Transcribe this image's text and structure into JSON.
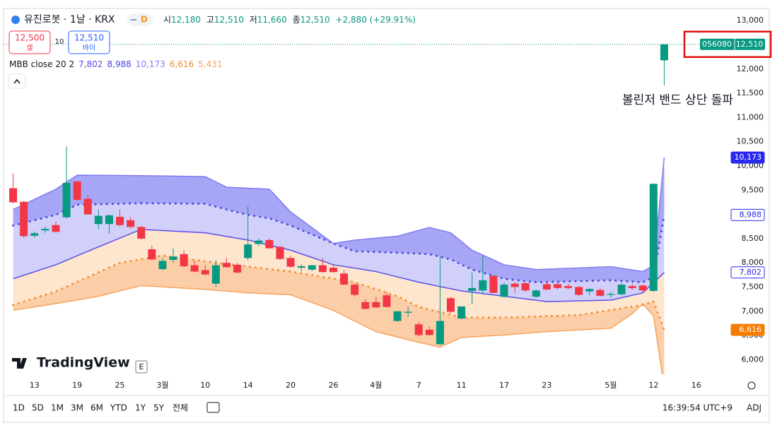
{
  "header": {
    "symbol": "유진로봇 · 1날 · KRX",
    "badge": "D",
    "ohlc": [
      {
        "label": "시",
        "value": "12,180"
      },
      {
        "label": "고",
        "value": "12,510"
      },
      {
        "label": "저",
        "value": "11,660"
      },
      {
        "label": "종",
        "value": "12,510"
      }
    ],
    "change": "+2,880 (+29.91%)"
  },
  "trade": {
    "sell_price": "12,500",
    "sell": "셀",
    "spread": "10",
    "buy_price": "12,510",
    "buy": "바이"
  },
  "chart_data": {
    "type": "candlestick",
    "indicator": "MBB close 20 2",
    "annotation": "볼린저 밴드 상단 돌파",
    "last_price": {
      "symbol": "056080",
      "label": "12,510"
    },
    "up_color": "#089981",
    "down_color": "#f23645",
    "open": [
      9540,
      9260,
      8560,
      8670,
      8780,
      8940,
      9680,
      9320,
      8800,
      8800,
      8950,
      8880,
      8740,
      8280,
      7870,
      8060,
      8180,
      7950,
      7850,
      7570,
      8000,
      7960,
      8100,
      8390,
      8470,
      8330,
      8100,
      7900,
      7860,
      7950,
      7900,
      7780,
      7550,
      7190,
      7190,
      7330,
      6800,
      6970,
      6730,
      6620,
      6320,
      7270,
      6850,
      7420,
      7430,
      7730,
      7300,
      7570,
      7580,
      7300,
      7560,
      7560,
      7520,
      7500,
      7410,
      7440,
      7340,
      7350,
      7520,
      7530,
      7420,
      12180
    ],
    "high": [
      9850,
      9280,
      8650,
      8750,
      8850,
      10400,
      9700,
      9400,
      9100,
      9000,
      9100,
      8950,
      8760,
      8350,
      8100,
      8300,
      8250,
      8050,
      7950,
      8050,
      8100,
      8000,
      9170,
      8500,
      8500,
      8350,
      8150,
      7980,
      7950,
      8100,
      7950,
      7850,
      7580,
      7250,
      7300,
      7400,
      7000,
      7100,
      6780,
      6680,
      8150,
      7300,
      7100,
      7800,
      8150,
      7750,
      7600,
      7600,
      7600,
      7450,
      7600,
      7620,
      7570,
      7520,
      7480,
      7480,
      7400,
      7580,
      7560,
      7560,
      9640,
      12510
    ],
    "low": [
      9230,
      8520,
      8520,
      8620,
      8620,
      8920,
      9280,
      8990,
      8700,
      8600,
      8750,
      8710,
      8480,
      8050,
      7850,
      8000,
      7900,
      7800,
      7740,
      7500,
      7900,
      7780,
      8050,
      8350,
      8300,
      8060,
      7900,
      7820,
      7830,
      7800,
      7800,
      7540,
      7300,
      7040,
      7060,
      7070,
      6780,
      6880,
      6480,
      6500,
      6300,
      6960,
      6830,
      7150,
      7350,
      7380,
      7280,
      7380,
      7400,
      7280,
      7430,
      7450,
      7450,
      7320,
      7330,
      7300,
      7280,
      7330,
      7440,
      7400,
      7400,
      11660
    ],
    "close": [
      9250,
      8550,
      8610,
      8700,
      8640,
      9650,
      9300,
      9000,
      8970,
      8980,
      8780,
      8740,
      8500,
      8070,
      8040,
      8130,
      7930,
      7820,
      7760,
      7950,
      7910,
      7800,
      8380,
      8460,
      8300,
      8080,
      7920,
      7930,
      7950,
      7810,
      7810,
      7550,
      7340,
      7050,
      7080,
      7090,
      7000,
      6990,
      6510,
      6510,
      6800,
      6990,
      7100,
      7480,
      7640,
      7380,
      7550,
      7500,
      7430,
      7430,
      7450,
      7480,
      7480,
      7340,
      7460,
      7320,
      7360,
      7550,
      7480,
      7430,
      9630,
      12510
    ],
    "bands": [
      {
        "color": "#5b4ee8",
        "style": "solid",
        "value_label": "7,802",
        "x": [
          0,
          4,
          8,
          12,
          18,
          22,
          26,
          30,
          34,
          38,
          42,
          46,
          50,
          56,
          59,
          61
        ],
        "values": [
          7670,
          7960,
          8330,
          8690,
          8620,
          8470,
          8260,
          7960,
          7820,
          7600,
          7420,
          7310,
          7200,
          7230,
          7380,
          7802
        ]
      },
      {
        "color": "#4a46d8",
        "style": "dotted",
        "value_label": "8,988",
        "x": [
          0,
          4,
          6,
          12,
          18,
          20,
          22,
          24,
          26,
          30,
          32,
          36,
          39,
          41,
          43,
          46,
          49,
          56,
          59,
          60,
          61
        ],
        "values": [
          8770,
          8990,
          9200,
          9230,
          9220,
          9100,
          8990,
          8920,
          8770,
          8400,
          8240,
          8210,
          8180,
          8070,
          7860,
          7670,
          7600,
          7640,
          7600,
          7700,
          8988
        ]
      },
      {
        "color": "#7f7cf2",
        "style": "solid",
        "value_label": "10,173",
        "x": [
          0,
          4,
          6,
          12,
          18,
          20,
          24,
          26,
          30,
          32,
          36,
          39,
          41,
          43,
          46,
          49,
          56,
          59,
          60,
          61
        ],
        "values": [
          9100,
          9520,
          9810,
          9800,
          9780,
          9560,
          9520,
          9050,
          8400,
          8470,
          8550,
          8730,
          8620,
          8260,
          7960,
          7860,
          7920,
          7820,
          7950,
          10173
        ]
      },
      {
        "color": "#f28c28",
        "style": "dotted",
        "value_label": "6,616",
        "x": [
          0,
          4,
          10,
          14,
          19,
          26,
          32,
          36,
          38,
          42,
          46,
          53,
          59,
          60,
          61
        ],
        "values": [
          7130,
          7410,
          8000,
          8150,
          8000,
          7820,
          7600,
          7310,
          7090,
          6870,
          6870,
          6920,
          7130,
          7200,
          6616
        ]
      },
      {
        "color": "#f7a35c",
        "style": "solid",
        "value_label": "5,431",
        "x": [
          0,
          4,
          8,
          12,
          18,
          22,
          26,
          30,
          34,
          38,
          40,
          42,
          46,
          50,
          56,
          58,
          59,
          60,
          61
        ],
        "values": [
          7020,
          7160,
          7310,
          7530,
          7450,
          7380,
          7340,
          7020,
          6580,
          6360,
          6260,
          6460,
          6510,
          6580,
          6650,
          6950,
          7160,
          6900,
          5431
        ]
      }
    ],
    "xlim": [
      -0.9,
      67
    ],
    "ylim": [
      5700,
      13250
    ],
    "xticks": [
      {
        "value": 2,
        "label": "13"
      },
      {
        "value": 6,
        "label": "19"
      },
      {
        "value": 10,
        "label": "25"
      },
      {
        "value": 14,
        "label": "3월"
      },
      {
        "value": 18,
        "label": "10"
      },
      {
        "value": 22,
        "label": "14"
      },
      {
        "value": 26,
        "label": "20"
      },
      {
        "value": 30,
        "label": "26"
      },
      {
        "value": 34,
        "label": "4월"
      },
      {
        "value": 38,
        "label": "7"
      },
      {
        "value": 42,
        "label": "11"
      },
      {
        "value": 46,
        "label": "17"
      },
      {
        "value": 50,
        "label": "23"
      },
      {
        "value": 56,
        "label": "5월"
      },
      {
        "value": 60,
        "label": "12"
      },
      {
        "value": 64,
        "label": "16"
      }
    ],
    "yticks": [
      {
        "value": 6000,
        "label": "6,000"
      },
      {
        "value": 6500,
        "label": "6,500"
      },
      {
        "value": 7000,
        "label": "7,000"
      },
      {
        "value": 7500,
        "label": "7,500"
      },
      {
        "value": 8000,
        "label": "8,000"
      },
      {
        "value": 8500,
        "label": "8,500"
      },
      {
        "value": 9000,
        "label": "9,000"
      },
      {
        "value": 9500,
        "label": "9,500"
      },
      {
        "value": 10000,
        "label": "10,000"
      },
      {
        "value": 10500,
        "label": "10,500"
      },
      {
        "value": 11000,
        "label": "11,000"
      },
      {
        "value": 11500,
        "label": "11,500"
      },
      {
        "value": 12000,
        "label": "12,000"
      },
      {
        "value": 12500,
        "label": "12,500"
      },
      {
        "value": 13000,
        "label": "13,000"
      }
    ]
  },
  "logo": "TradingView",
  "event": "E",
  "toolbar": {
    "ranges": [
      "1D",
      "5D",
      "1M",
      "3M",
      "6M",
      "YTD",
      "1Y",
      "5Y",
      "전체"
    ],
    "time": "16:39:54 UTC+9",
    "adj": "ADJ"
  }
}
